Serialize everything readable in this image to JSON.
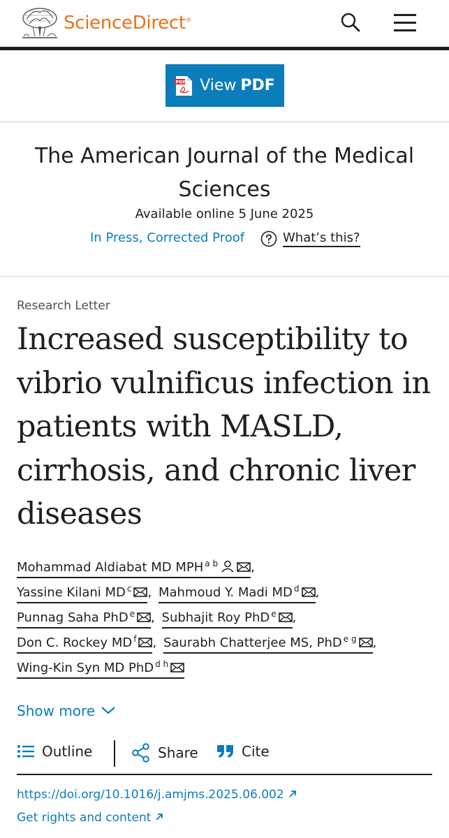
{
  "header": {
    "brand": "ScienceDirect",
    "brand_mark": "®",
    "search_icon": "search-icon",
    "menu_icon": "hamburger-menu-icon"
  },
  "pdf_button": {
    "label_prefix": "View",
    "label_strong": "PDF",
    "icon": "pdf-file-icon",
    "color": "#0c7dbb"
  },
  "journal": {
    "title": "The American Journal of the Medical Sciences",
    "available": "Available online 5 June 2025",
    "status": "In Press, Corrected Proof",
    "help_icon": "question-circle-icon",
    "help_label": "What’s this?"
  },
  "article": {
    "type": "Research Letter",
    "title": "Increased susceptibility to vibrio vulnificus infection in patients with MASLD, cirrhosis, and chronic liver diseases"
  },
  "authors": [
    {
      "name": "Mohammad Aldiabat MD MPH",
      "sup": "a b",
      "icons": [
        "person-icon",
        "mail-icon"
      ]
    },
    {
      "name": "Yassine Kilani MD",
      "sup": "c",
      "icons": [
        "mail-icon"
      ]
    },
    {
      "name": "Mahmoud Y. Madi MD",
      "sup": "d",
      "icons": [
        "mail-icon"
      ]
    },
    {
      "name": "Punnag Saha PhD",
      "sup": "e",
      "icons": [
        "mail-icon"
      ]
    },
    {
      "name": "Subhajit Roy PhD",
      "sup": "e",
      "icons": [
        "mail-icon"
      ]
    },
    {
      "name": "Don C. Rockey MD",
      "sup": "f",
      "icons": [
        "mail-icon"
      ]
    },
    {
      "name": "Saurabh Chatterjee MS, PhD",
      "sup": "e g",
      "icons": [
        "mail-icon"
      ]
    },
    {
      "name": "Wing-Kin Syn MD PhD",
      "sup": "d h",
      "icons": [
        "mail-icon"
      ]
    }
  ],
  "author_separator": ",",
  "show_more": "Show more",
  "toolbar": {
    "outline": "Outline",
    "share": "Share",
    "cite": "Cite"
  },
  "links": {
    "doi": "https://doi.org/10.1016/j.amjms.2025.06.002",
    "rights": "Get rights and content"
  },
  "colors": {
    "accent": "#0c7dbb",
    "brand": "#e9711c",
    "text": "#1f1f1f"
  }
}
